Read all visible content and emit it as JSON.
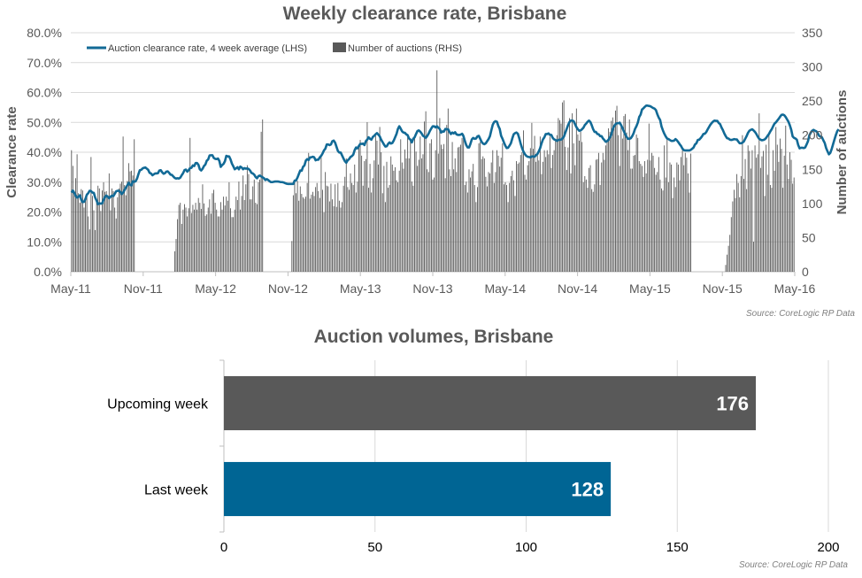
{
  "colors": {
    "line": "#126a96",
    "bar": "#595959",
    "bar_upcoming": "#595959",
    "bar_last": "#006594",
    "grid": "#d9d9d9",
    "axis": "#bfbfbf"
  },
  "chart_data": [
    {
      "type": "bar+line",
      "title": "Weekly clearance rate, Brisbane",
      "ylabel": "Clearance rate",
      "y2label": "Number of auctions",
      "ylim": [
        0,
        80
      ],
      "y2lim": [
        0,
        350
      ],
      "yticks": [
        "0.0%",
        "10.0%",
        "20.0%",
        "30.0%",
        "40.0%",
        "50.0%",
        "60.0%",
        "70.0%",
        "80.0%"
      ],
      "y2ticks": [
        "0",
        "50",
        "100",
        "150",
        "200",
        "250",
        "300",
        "350"
      ],
      "xticks": [
        "May-11",
        "Nov-11",
        "May-12",
        "Nov-12",
        "May-13",
        "Nov-13",
        "May-14",
        "Nov-14",
        "May-15",
        "Nov-15",
        "May-16"
      ],
      "grid": true,
      "legend_position": "top-left",
      "legend": [
        "Auction clearance rate, 4 week average (LHS)",
        "Number of auctions (RHS)"
      ],
      "x_unit": "weeks from May-11",
      "bars": [
        178,
        155,
        117,
        137,
        172,
        115,
        101,
        121,
        119,
        94,
        110,
        109,
        81,
        62,
        168,
        111,
        90,
        61,
        101,
        126,
        122,
        89,
        119,
        131,
        117,
        118,
        112,
        144,
        90,
        122,
        118,
        94,
        78,
        109,
        122,
        129,
        132,
        198,
        127,
        112,
        133,
        159,
        147,
        148,
        141,
        194,
        0,
        0,
        0,
        0,
        0,
        0,
        0,
        0,
        0,
        0,
        0,
        0,
        0,
        0,
        0,
        0,
        0,
        0,
        0,
        0,
        0,
        0,
        0,
        0,
        0,
        0,
        0,
        0,
        30,
        48,
        77,
        98,
        101,
        70,
        91,
        99,
        94,
        81,
        93,
        196,
        86,
        98,
        91,
        101,
        91,
        108,
        101,
        92,
        128,
        100,
        82,
        84,
        94,
        106,
        85,
        115,
        120,
        101,
        91,
        81,
        81,
        102,
        91,
        110,
        97,
        110,
        104,
        131,
        93,
        80,
        80,
        91,
        110,
        105,
        132,
        91,
        111,
        141,
        105,
        128,
        156,
        143,
        106,
        106,
        125,
        135,
        101,
        99,
        131,
        135,
        205,
        223,
        0,
        0,
        0,
        0,
        0,
        0,
        0,
        0,
        0,
        0,
        0,
        0,
        0,
        0,
        0,
        0,
        0,
        0,
        0,
        0,
        45,
        112,
        133,
        115,
        133,
        104,
        125,
        114,
        109,
        107,
        110,
        130,
        174,
        107,
        113,
        117,
        111,
        124,
        130,
        118,
        108,
        168,
        120,
        87,
        146,
        126,
        125,
        103,
        129,
        106,
        96,
        128,
        95,
        130,
        104,
        94,
        102,
        126,
        139,
        166,
        124,
        120,
        144,
        130,
        127,
        157,
        116,
        132,
        182,
        193,
        170,
        126,
        162,
        165,
        219,
        123,
        158,
        116,
        137,
        163,
        199,
        192,
        157,
        212,
        175,
        115,
        155,
        102,
        161,
        123,
        127,
        169,
        157,
        148,
        153,
        134,
        131,
        148,
        194,
        160,
        151,
        179,
        166,
        197,
        166,
        193,
        132,
        126,
        197,
        176,
        155,
        164,
        198,
        166,
        172,
        220,
        235,
        150,
        146,
        188,
        194,
        135,
        138,
        178,
        295,
        173,
        225,
        186,
        180,
        187,
        137,
        215,
        239,
        150,
        140,
        190,
        150,
        166,
        146,
        182,
        183,
        186,
        196,
        202,
        127,
        132,
        116,
        150,
        138,
        147,
        158,
        127,
        102,
        124,
        188,
        190,
        165,
        169,
        166,
        139,
        125,
        146,
        144,
        160,
        178,
        130,
        146,
        178,
        170,
        154,
        167,
        188,
        128,
        131,
        127,
        102,
        130,
        140,
        148,
        134,
        111,
        162,
        158,
        160,
        171,
        175,
        207,
        142,
        135,
        156,
        162,
        181,
        218,
        180,
        199,
        161,
        175,
        163,
        198,
        143,
        161,
        178,
        168,
        178,
        172,
        198,
        152,
        171,
        178,
        194,
        200,
        225,
        222,
        217,
        248,
        251,
        183,
        149,
        182,
        225,
        144,
        232,
        188,
        156,
        239,
        201,
        192,
        205,
        190,
        131,
        140,
        135,
        123,
        152,
        156,
        121,
        117,
        128,
        164,
        165,
        174,
        127,
        160,
        174,
        164,
        185,
        190,
        210,
        205,
        221,
        226,
        210,
        236,
        243,
        200,
        155,
        213,
        195,
        228,
        231,
        204,
        178,
        223,
        151,
        151,
        170,
        171,
        201,
        196,
        162,
        158,
        155,
        139,
        162,
        144,
        164,
        217,
        163,
        174,
        170,
        152,
        142,
        146,
        168,
        135,
        122,
        119,
        185,
        138,
        196,
        131,
        160,
        157,
        108,
        138,
        124,
        160,
        157,
        134,
        168,
        178,
        156,
        174,
        167,
        144,
        116,
        173,
        0,
        0,
        0,
        0,
        0,
        0,
        0,
        0,
        0,
        0,
        0,
        0,
        0,
        0,
        0,
        0,
        0,
        0,
        0,
        0,
        0,
        0,
        0,
        0,
        10,
        25,
        38,
        54,
        80,
        103,
        120,
        108,
        143,
        130,
        109,
        140,
        200,
        136,
        165,
        121,
        185,
        177,
        151,
        178,
        44,
        185,
        167,
        172,
        232,
        152,
        169,
        177,
        111,
        186,
        142,
        200,
        127,
        123,
        178,
        148,
        212,
        186,
        161,
        195,
        180,
        123,
        170,
        214,
        157,
        136,
        175,
        164,
        129,
        138
      ],
      "line": [
        26.5,
        27.2,
        26.4,
        25.4,
        24.8,
        25.1,
        25.6,
        24.1,
        23.3,
        23.4,
        24.4,
        25.8,
        26.3,
        27.1,
        27.0,
        26.5,
        26.4,
        24.8,
        23.8,
        22.6,
        22.9,
        22.8,
        22.9,
        24.1,
        25.0,
        25.5,
        25.1,
        24.6,
        25.1,
        25.5,
        25.3,
        26.1,
        26.9,
        27.1,
        27.1,
        26.7,
        26.0,
        26.5,
        27.3,
        28.2,
        28.9,
        29.8,
        29.1,
        28.9,
        30.3,
        30.1,
        30.3,
        31.2,
        32.7,
        34.0,
        34.1,
        34.6,
        34.8,
        34.9,
        34.5,
        34.1,
        33.1,
        32.9,
        32.3,
        32.6,
        32.9,
        32.9,
        33.0,
        33.9,
        34.0,
        33.3,
        32.8,
        33.0,
        33.5,
        33.6,
        33.1,
        32.5,
        32.4,
        31.9,
        31.4,
        31.2,
        31.3,
        31.2,
        31.5,
        32.3,
        33.0,
        34.0,
        34.2,
        33.5,
        34.0,
        34.7,
        34.8,
        35.6,
        35.4,
        36.4,
        36.4,
        35.8,
        34.3,
        33.9,
        34.5,
        35.4,
        35.9,
        37.2,
        37.6,
        38.9,
        39.0,
        39.0,
        38.1,
        37.8,
        37.7,
        37.9,
        37.1,
        35.1,
        35.7,
        36.1,
        37.0,
        38.8,
        38.6,
        38.6,
        37.6,
        36.2,
        35.3,
        34.3,
        34.6,
        35.0,
        34.3,
        35.2,
        34.9,
        34.3,
        34.7,
        34.5,
        34.6,
        34.4,
        33.9,
        33.1,
        32.9,
        32.5,
        31.7,
        31.3,
        32.0,
        32.2,
        31.9,
        31.6,
        31.3,
        30.7,
        31.0,
        30.7,
        30.3,
        30.0,
        30.0,
        30.1,
        30.2,
        30.2,
        30.2,
        30.1,
        30.0,
        30.0,
        29.9,
        29.7,
        29.5,
        29.4,
        29.4,
        29.4,
        29.4,
        29.4,
        30.5,
        30.6,
        31.5,
        32.7,
        33.9,
        33.8,
        35.1,
        35.6,
        37.2,
        37.7,
        37.4,
        38.3,
        38.3,
        38.5,
        38.3,
        37.3,
        37.5,
        37.5,
        38.3,
        38.8,
        39.6,
        40.6,
        41.2,
        42.6,
        42.6,
        42.4,
        42.6,
        43.7,
        43.9,
        43.2,
        41.8,
        40.4,
        39.9,
        39.9,
        38.9,
        37.9,
        37.0,
        36.5,
        37.3,
        37.7,
        38.4,
        38.7,
        39.2,
        40.7,
        41.6,
        41.3,
        42.1,
        42.8,
        42.8,
        42.9,
        42.4,
        43.7,
        44.2,
        45.0,
        44.5,
        44.2,
        45.1,
        45.5,
        46.0,
        46.4,
        45.9,
        45.3,
        44.2,
        43.4,
        42.6,
        41.9,
        42.0,
        42.8,
        43.3,
        42.9,
        43.1,
        43.9,
        45.0,
        46.1,
        47.8,
        48.7,
        47.9,
        47.0,
        46.6,
        46.5,
        46.0,
        45.7,
        44.6,
        44.2,
        43.3,
        44.5,
        45.0,
        46.1,
        47.1,
        47.3,
        46.9,
        46.3,
        45.5,
        45.2,
        44.8,
        45.4,
        46.2,
        47.2,
        48.0,
        48.7,
        48.7,
        48.3,
        48.7,
        48.2,
        47.8,
        46.6,
        47.0,
        46.9,
        47.8,
        47.7,
        47.7,
        46.8,
        46.1,
        46.6,
        46.3,
        46.7,
        46.0,
        45.8,
        45.8,
        45.9,
        46.2,
        45.4,
        43.8,
        42.4,
        41.6,
        41.6,
        42.8,
        44.3,
        44.8,
        44.5,
        44.6,
        45.3,
        45.5,
        44.5,
        43.5,
        42.9,
        42.7,
        43.0,
        43.7,
        44.4,
        45.4,
        47.4,
        49.2,
        50.1,
        50.4,
        50.2,
        48.8,
        47.8,
        45.5,
        44.5,
        43.3,
        42.2,
        41.4,
        41.5,
        42.2,
        43.0,
        44.6,
        46.0,
        46.4,
        46.6,
        46.2,
        44.7,
        42.9,
        41.4,
        40.2,
        39.4,
        38.8,
        38.5,
        38.4,
        38.3,
        38.6,
        38.6,
        38.5,
        39.0,
        39.4,
        40.3,
        41.4,
        43.0,
        44.3,
        45.0,
        46.1,
        46.1,
        46.3,
        45.8,
        45.8,
        44.8,
        44.3,
        44.1,
        43.8,
        44.1,
        44.2,
        44.2,
        44.6,
        45.2,
        46.5,
        47.8,
        49.1,
        50.1,
        50.6,
        50.6,
        50.4,
        49.4,
        48.4,
        47.7,
        47.2,
        47.3,
        47.7,
        48.2,
        49.1,
        49.6,
        50.2,
        50.6,
        50.1,
        49.0,
        47.7,
        46.8,
        46.8,
        46.1,
        46.0,
        45.4,
        45.4,
        44.6,
        44.1,
        43.5,
        43.7,
        44.2,
        45.0,
        45.9,
        47.7,
        48.7,
        49.4,
        49.7,
        49.7,
        49.9,
        49.1,
        48.1,
        47.0,
        46.0,
        45.1,
        44.5,
        44.5,
        44.7,
        45.4,
        46.4,
        47.8,
        48.7,
        49.9,
        51.8,
        52.6,
        54.3,
        54.7,
        55.2,
        55.6,
        55.6,
        55.5,
        55.4,
        55.1,
        54.8,
        54.6,
        54.1,
        52.7,
        51.6,
        50.8,
        48.6,
        47.3,
        46.2,
        45.3,
        44.6,
        44.4,
        44.1,
        43.8,
        43.8,
        43.9,
        44.4,
        44.0,
        43.4,
        42.7,
        42.1,
        41.2,
        40.7,
        40.6,
        40.6,
        40.6,
        40.6,
        40.8,
        41.2,
        41.6,
        42.6,
        43.0,
        44.1,
        44.2,
        44.7,
        45.3,
        46.1,
        46.2,
        46.7,
        47.6,
        48.4,
        49.2,
        49.8,
        50.3,
        50.6,
        50.5,
        50.5,
        49.8,
        49.4,
        48.3,
        47.4,
        46.3,
        45.4,
        44.7,
        44.6,
        44.2,
        44.1,
        44.2,
        44.4,
        44.3,
        44.3,
        43.6,
        43.0,
        43.0,
        43.2,
        43.6,
        44.5,
        45.4,
        46.5,
        47.2,
        47.5,
        47.7,
        47.3,
        46.8,
        46.1,
        45.2,
        44.5,
        44.2,
        44.0,
        44.1,
        44.3,
        44.8,
        45.5,
        46.1,
        47.0,
        47.7,
        48.7,
        49.6,
        50.0,
        50.6,
        51.2,
        51.9,
        52.5,
        52.6,
        52.4,
        51.8,
        51.0,
        50.2,
        49.0,
        47.5,
        45.3,
        44.8,
        44.6,
        44.2,
        42.4,
        41.3,
        41.5,
        41.5,
        41.4,
        41.6,
        42.6,
        43.7,
        45.7,
        46.6,
        47.2,
        47.5,
        47.2,
        47.0,
        46.4,
        45.5,
        45.2,
        45.0,
        44.0,
        43.1,
        41.4,
        40.3,
        39.3,
        39.8,
        41.1,
        42.7,
        44.3,
        45.8,
        47.1,
        47.7
      ]
    },
    {
      "type": "bar",
      "orientation": "horizontal",
      "title": "Auction volumes, Brisbane",
      "categories": [
        "Upcoming week",
        "Last week"
      ],
      "values": [
        176,
        128
      ],
      "data_labels": [
        "176",
        "128"
      ],
      "xlim": [
        0,
        200
      ],
      "xticks": [
        "0",
        "50",
        "100",
        "150",
        "200"
      ],
      "grid": true
    }
  ],
  "source1": "Source: CoreLogic  RP Data",
  "source2": "Source: CoreLogic  RP Data"
}
